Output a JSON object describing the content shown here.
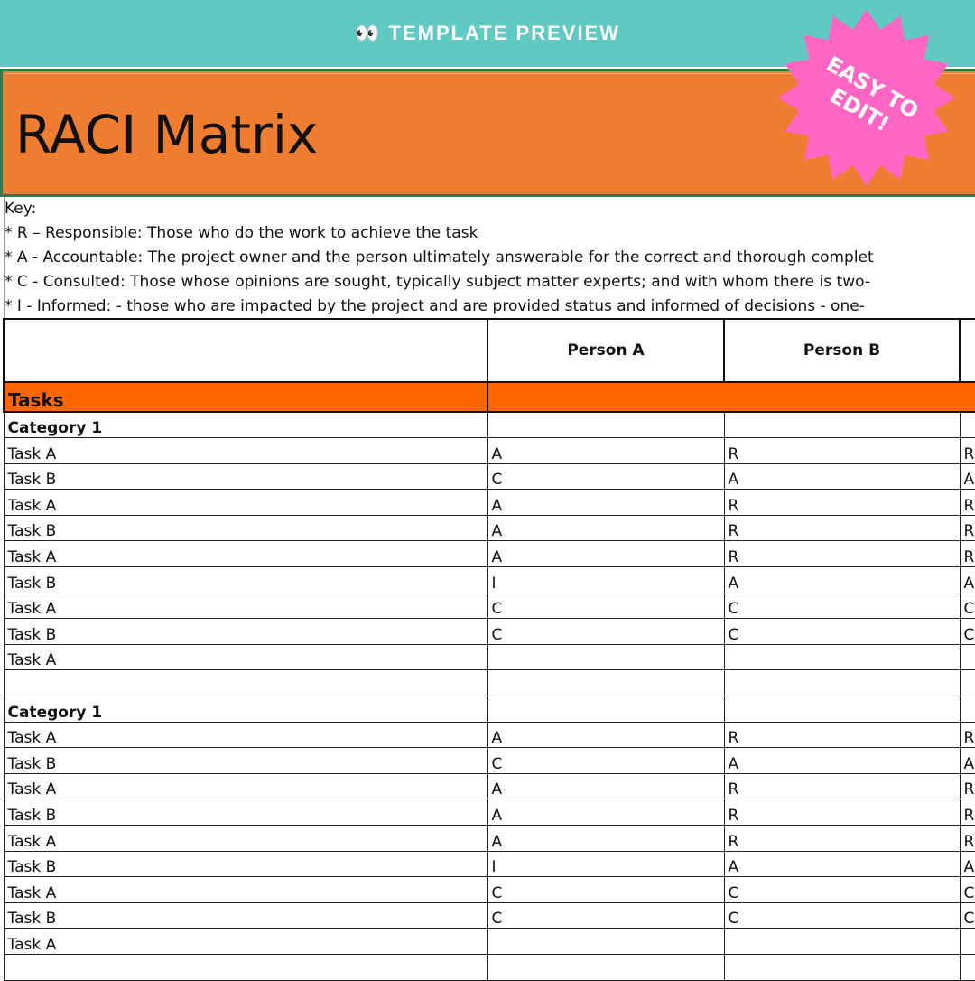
{
  "banner": {
    "icon": "eyes-icon",
    "text": "👀 TEMPLATE PREVIEW"
  },
  "badge": {
    "text": "EASY TO EDIT!",
    "color": "#ff66c4"
  },
  "title": "RACI Matrix",
  "key": {
    "heading": "Key:",
    "lines": [
      "* R – Responsible: Those who do the work to achieve the task",
      "* A - Accountable: The project owner and the person ultimately answerable for the correct and thorough complet",
      "* C - Consulted: Those whose opinions are sought, typically subject matter experts; and with whom there is two-",
      "* I  - Informed: - those who are impacted by the project and are provided status and informed of decisions - one-"
    ]
  },
  "table": {
    "headers": [
      "",
      "Person A",
      "Person B",
      ""
    ],
    "tasks_label": "Tasks",
    "sections": [
      {
        "category": "Category 1",
        "rows": [
          [
            "Task A",
            "A",
            "R",
            "R"
          ],
          [
            "Task B",
            "C",
            "A",
            "A"
          ],
          [
            "Task A",
            "A",
            "R",
            "R"
          ],
          [
            "Task B",
            "A",
            "R",
            "R"
          ],
          [
            "Task A",
            "A",
            "R",
            "R"
          ],
          [
            "Task B",
            "I",
            "A",
            "A"
          ],
          [
            "Task A",
            "C",
            "C",
            "C"
          ],
          [
            "Task B",
            "C",
            "C",
            "C"
          ],
          [
            "Task A",
            "",
            "",
            ""
          ],
          [
            "",
            "",
            "",
            ""
          ]
        ]
      },
      {
        "category": "Category 1",
        "rows": [
          [
            "Task A",
            "A",
            "R",
            "R"
          ],
          [
            "Task B",
            "C",
            "A",
            "A"
          ],
          [
            "Task A",
            "A",
            "R",
            "R"
          ],
          [
            "Task B",
            "A",
            "R",
            "R"
          ],
          [
            "Task A",
            "A",
            "R",
            "R"
          ],
          [
            "Task B",
            "I",
            "A",
            "A"
          ],
          [
            "Task A",
            "C",
            "C",
            "C"
          ],
          [
            "Task B",
            "C",
            "C",
            "C"
          ],
          [
            "Task A",
            "",
            "",
            ""
          ],
          [
            "",
            "",
            "",
            ""
          ]
        ]
      }
    ]
  },
  "colors": {
    "banner": "#5fc9c2",
    "title_bg": "#ee7d31",
    "tasks_bg": "#ff6600"
  }
}
